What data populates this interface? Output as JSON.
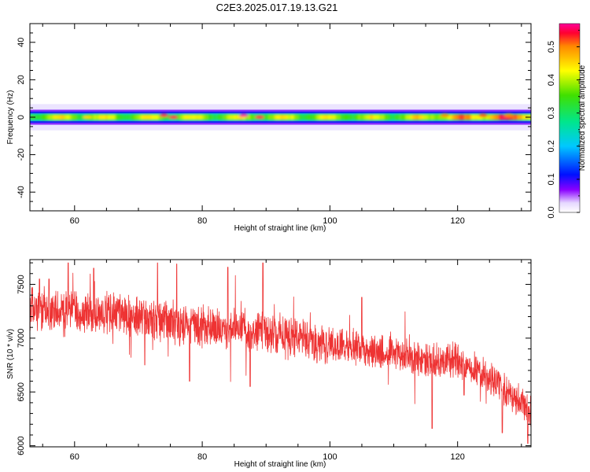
{
  "title": "C2E3.2025.017.19.13.G21",
  "chart_data": [
    {
      "type": "heatmap",
      "xlabel": "Height of straight line (km)",
      "ylabel": "Frequency (Hz)",
      "xlim": [
        53,
        131.5
      ],
      "ylim": [
        -50,
        50
      ],
      "xticks": [
        60,
        80,
        100,
        120
      ],
      "yticks": [
        40,
        20,
        0,
        -20,
        -40
      ],
      "colorbar": {
        "label": "Normalized spectral amplitude",
        "range": [
          0,
          0.57
        ],
        "ticks": [
          0.0,
          0.1,
          0.2,
          0.3,
          0.4,
          0.5
        ],
        "tick_labels": [
          "0.0",
          "0.1",
          "0.2",
          "0.3",
          "0.4",
          "0.5"
        ]
      },
      "band": {
        "center_hz": 0,
        "halfwidth_hz": [
          2,
          4,
          7
        ]
      },
      "peaks": [
        {
          "x": 74,
          "y": 1,
          "value": 0.55
        },
        {
          "x": 75.5,
          "y": 0,
          "value": 0.55
        },
        {
          "x": 86.5,
          "y": 1,
          "value": 0.57
        },
        {
          "x": 89,
          "y": 0,
          "value": 0.55
        },
        {
          "x": 62,
          "y": 0,
          "value": 0.45
        },
        {
          "x": 118,
          "y": 1,
          "value": 0.5
        },
        {
          "x": 124,
          "y": 1,
          "value": 0.52
        },
        {
          "x": 128,
          "y": 1,
          "value": 0.5
        }
      ]
    },
    {
      "type": "line",
      "xlabel": "Height of straight line (km)",
      "ylabel": "SNR (10 * v/v)",
      "xlim": [
        53,
        131.5
      ],
      "ylim": [
        5990,
        7730
      ],
      "xticks": [
        60,
        80,
        100,
        120
      ],
      "yticks": [
        7500,
        7000,
        6500,
        6000
      ],
      "color": "#ee3333",
      "trend": {
        "x": [
          53,
          60,
          70,
          80,
          90,
          100,
          110,
          115,
          120,
          125,
          128,
          131.5
        ],
        "y": [
          7280,
          7240,
          7200,
          7100,
          7040,
          6950,
          6850,
          6780,
          6800,
          6640,
          6500,
          6300
        ]
      },
      "spikes": [
        {
          "x": 54.5,
          "y": 7550
        },
        {
          "x": 56,
          "y": 7550
        },
        {
          "x": 59,
          "y": 7700
        },
        {
          "x": 63,
          "y": 7650
        },
        {
          "x": 73,
          "y": 7700
        },
        {
          "x": 76,
          "y": 7690
        },
        {
          "x": 84,
          "y": 7660
        },
        {
          "x": 89.5,
          "y": 7700
        },
        {
          "x": 105,
          "y": 7380
        },
        {
          "x": 71,
          "y": 6750
        },
        {
          "x": 78,
          "y": 6600
        },
        {
          "x": 87.5,
          "y": 6550
        },
        {
          "x": 116,
          "y": 6160
        },
        {
          "x": 121,
          "y": 6470
        },
        {
          "x": 127,
          "y": 6120
        },
        {
          "x": 131,
          "y": 6020
        }
      ]
    }
  ]
}
